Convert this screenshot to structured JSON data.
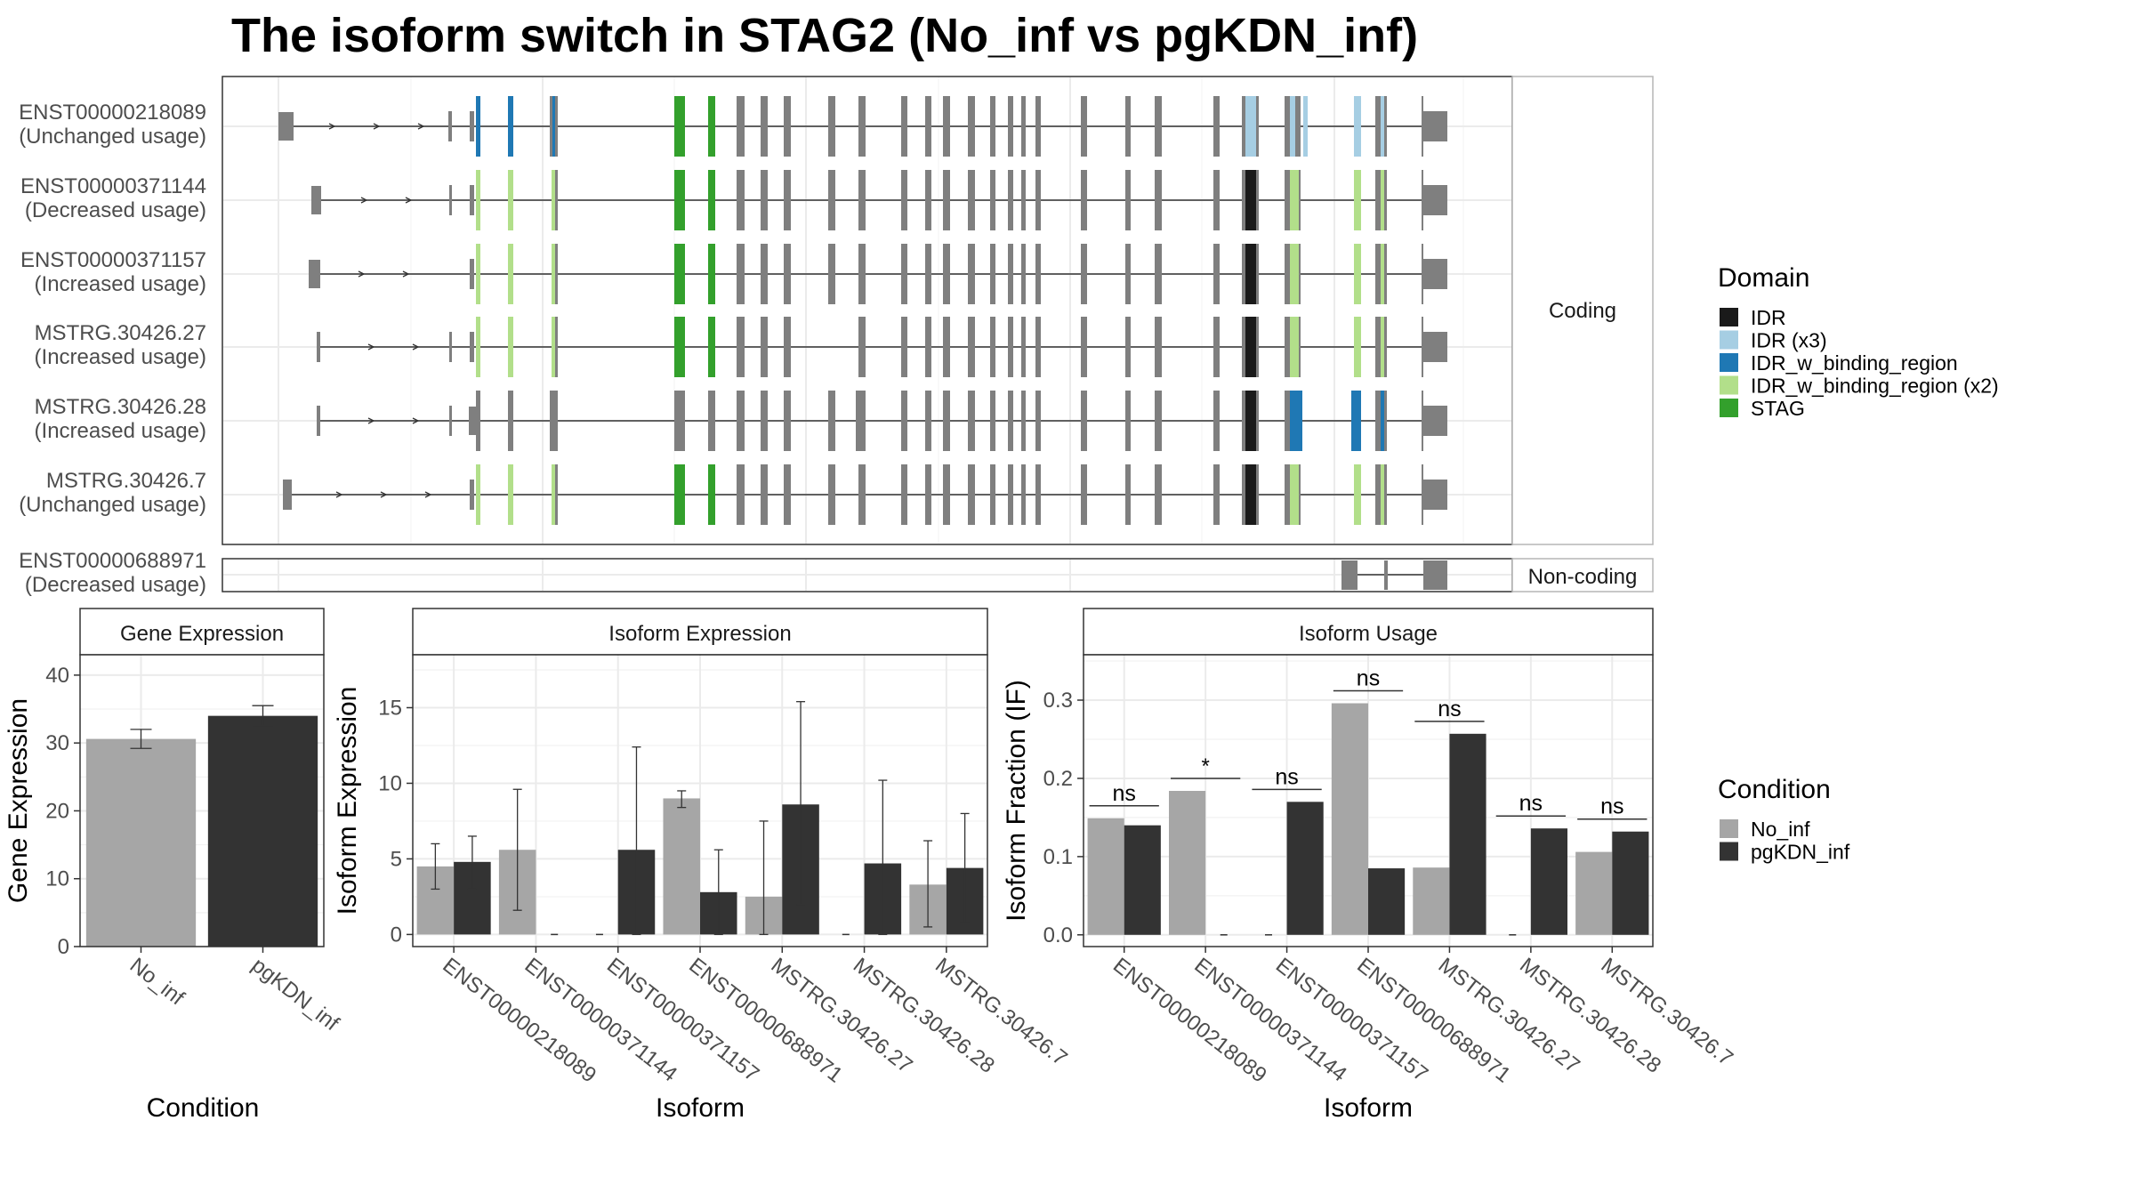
{
  "title": "The isoform switch in STAG2 (No_inf vs pgKDN_inf)",
  "colors": {
    "IDR": "#1a1a1a",
    "IDR (x3)": "#a6cee3",
    "IDR_w_binding_region": "#1f78b4",
    "IDR_w_binding_region (x2)": "#b2df8a",
    "STAG": "#33a02c",
    "exon": "#7f7f7f",
    "No_inf": "#a6a6a6",
    "pgKDN_inf": "#333333"
  },
  "structure": {
    "facets": [
      "Coding",
      "Non-coding"
    ],
    "transcripts": [
      {
        "id": "ENST00000218089",
        "usage": "(Unchanged usage)",
        "group": "Coding"
      },
      {
        "id": "ENST00000371144",
        "usage": "(Decreased usage)",
        "group": "Coding"
      },
      {
        "id": "ENST00000371157",
        "usage": "(Increased usage)",
        "group": "Coding"
      },
      {
        "id": "MSTRG.30426.27",
        "usage": "(Increased usage)",
        "group": "Coding"
      },
      {
        "id": "MSTRG.30426.28",
        "usage": "(Increased usage)",
        "group": "Coding"
      },
      {
        "id": "MSTRG.30426.7",
        "usage": "(Unchanged usage)",
        "group": "Coding"
      },
      {
        "id": "ENST00000688971",
        "usage": "(Decreased usage)",
        "group": "Non-coding"
      }
    ]
  },
  "legend_domain": {
    "title": "Domain",
    "items": [
      {
        "label": "IDR",
        "color": "#1a1a1a"
      },
      {
        "label": "IDR (x3)",
        "color": "#a6cee3"
      },
      {
        "label": "IDR_w_binding_region",
        "color": "#1f78b4"
      },
      {
        "label": "IDR_w_binding_region (x2)",
        "color": "#b2df8a"
      },
      {
        "label": "STAG",
        "color": "#33a02c"
      }
    ]
  },
  "legend_condition": {
    "title": "Condition",
    "items": [
      {
        "label": "No_inf",
        "color": "#a6a6a6"
      },
      {
        "label": "pgKDN_inf",
        "color": "#333333"
      }
    ]
  },
  "chart_data": [
    {
      "type": "bar",
      "title": "Gene Expression",
      "xlabel": "Condition",
      "ylabel": "Gene Expression",
      "ylim": [
        0,
        43
      ],
      "yticks": [
        0,
        10,
        20,
        30,
        40
      ],
      "categories": [
        "No_inf",
        "pgKDN_inf"
      ],
      "values": [
        30.6,
        34.0
      ],
      "errors": [
        [
          29.2,
          32.0
        ],
        [
          32.5,
          35.5
        ]
      ]
    },
    {
      "type": "bar",
      "title": "Isoform Expression",
      "xlabel": "Isoform",
      "ylabel": "Isoform Expression",
      "ylim": [
        -0.8,
        18.5
      ],
      "yticks": [
        0,
        5,
        10,
        15
      ],
      "categories": [
        "ENST00000218089",
        "ENST00000371144",
        "ENST00000371157",
        "ENST00000688971",
        "MSTRG.30426.27",
        "MSTRG.30426.28",
        "MSTRG.30426.7"
      ],
      "series": [
        {
          "name": "No_inf",
          "values": [
            4.5,
            5.6,
            0.0,
            9.0,
            2.5,
            0.0,
            3.3
          ],
          "errors": [
            [
              3.0,
              6.0
            ],
            [
              1.6,
              9.6
            ],
            [
              0.0,
              0.0
            ],
            [
              8.4,
              9.5
            ],
            [
              0.0,
              7.5
            ],
            [
              0.0,
              0.0
            ],
            [
              0.5,
              6.2
            ]
          ]
        },
        {
          "name": "pgKDN_inf",
          "values": [
            4.8,
            0.0,
            5.6,
            2.8,
            8.6,
            4.7,
            4.4
          ],
          "errors": [
            [
              3.0,
              6.5
            ],
            [
              0.0,
              0.0
            ],
            [
              0.0,
              12.4
            ],
            [
              0.0,
              5.6
            ],
            [
              2.0,
              15.4
            ],
            [
              0.0,
              10.2
            ],
            [
              0.8,
              8.0
            ]
          ]
        }
      ]
    },
    {
      "type": "bar",
      "title": "Isoform Usage",
      "xlabel": "Isoform",
      "ylabel": "Isoform Fraction (IF)",
      "ylim": [
        -0.015,
        0.358
      ],
      "yticks": [
        0.0,
        0.1,
        0.2,
        0.3
      ],
      "yticklabels": [
        "0.0",
        "0.1",
        "0.2",
        "0.3"
      ],
      "categories": [
        "ENST00000218089",
        "ENST00000371144",
        "ENST00000371157",
        "ENST00000688971",
        "MSTRG.30426.27",
        "MSTRG.30426.28",
        "MSTRG.30426.7"
      ],
      "series": [
        {
          "name": "No_inf",
          "values": [
            0.149,
            0.184,
            0.0,
            0.296,
            0.086,
            0.0,
            0.106
          ]
        },
        {
          "name": "pgKDN_inf",
          "values": [
            0.14,
            0.0,
            0.17,
            0.085,
            0.257,
            0.136,
            0.132
          ]
        }
      ],
      "significance": [
        "ns",
        "*",
        "ns",
        "ns",
        "ns",
        "ns",
        "ns"
      ]
    }
  ]
}
